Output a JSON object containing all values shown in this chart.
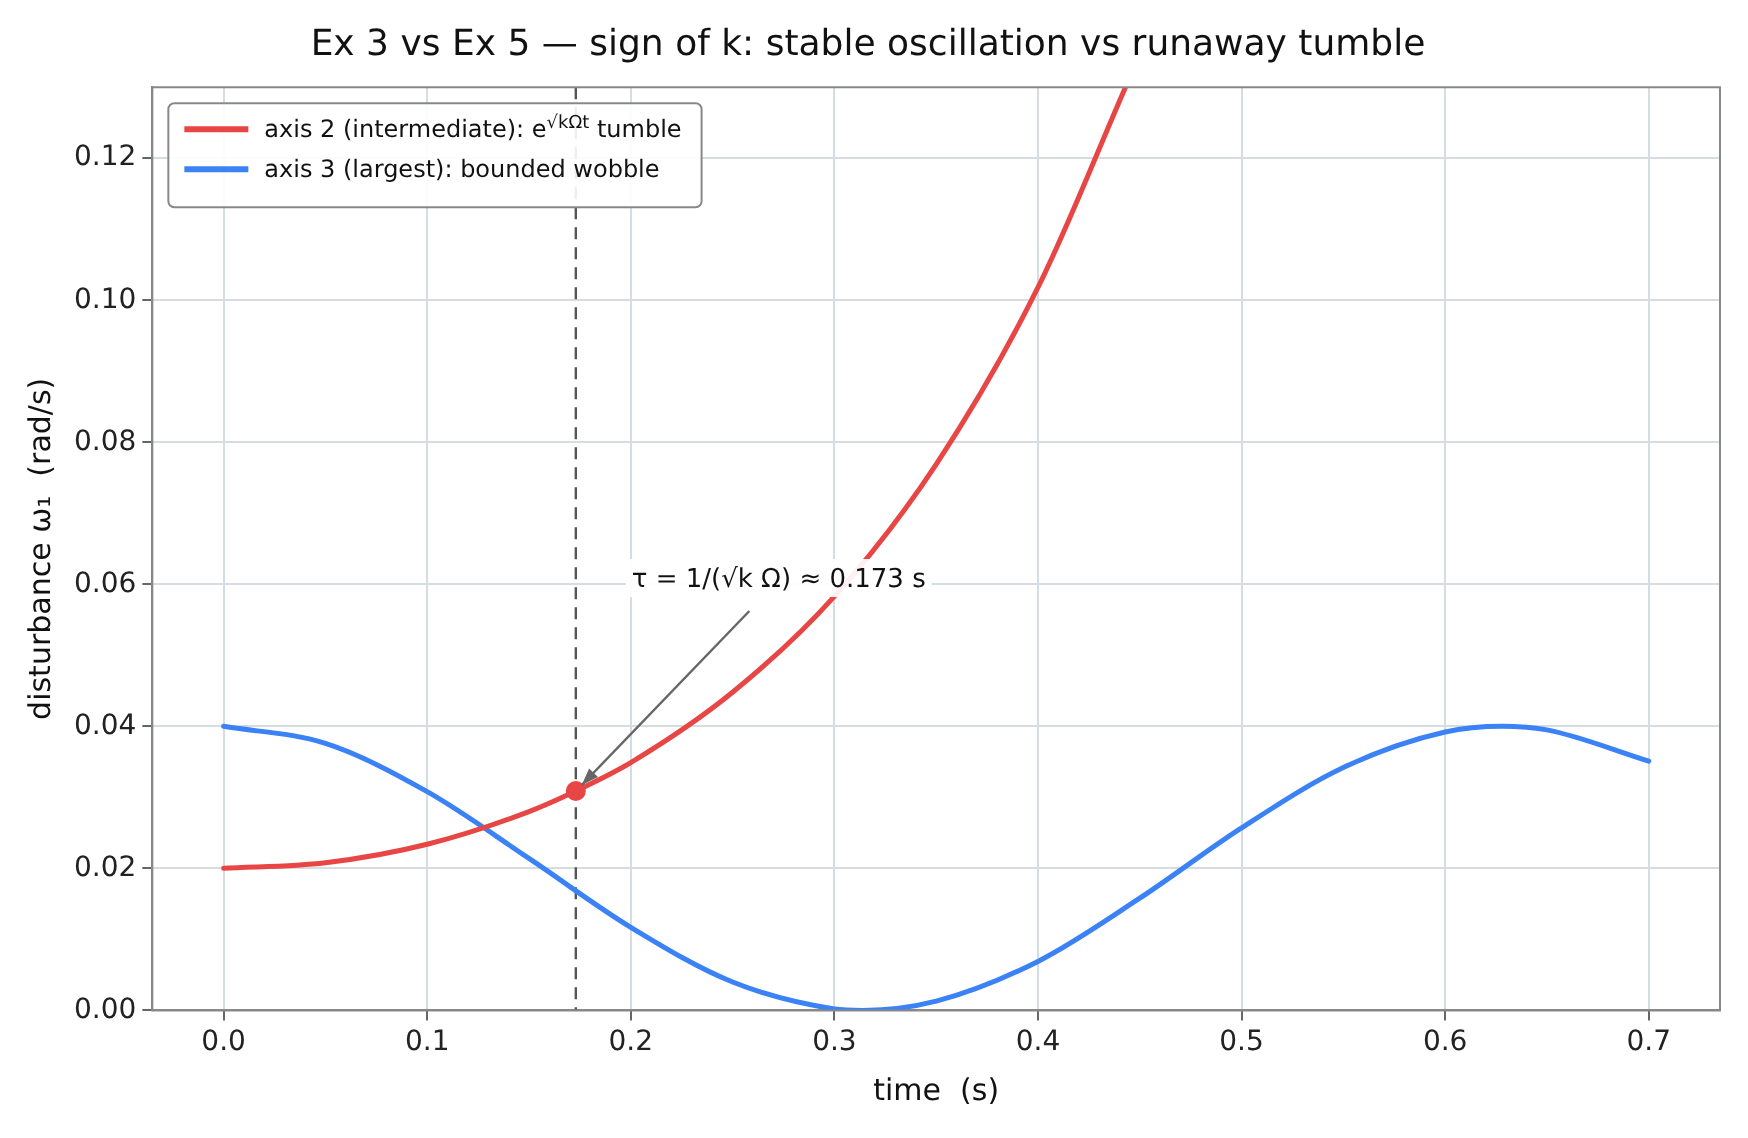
{
  "chart_data": {
    "type": "line",
    "title": "Ex 3 vs Ex 5 — sign of k: stable oscillation vs runaway tumble",
    "xlabel": "time  (s)",
    "ylabel": "disturbance ω₁  (rad/s)",
    "xlim": [
      -0.035,
      0.735
    ],
    "ylim": [
      0,
      0.13
    ],
    "xticks": [
      {
        "value": 0,
        "label": "0.0"
      },
      {
        "value": 0.1,
        "label": "0.1"
      },
      {
        "value": 0.2,
        "label": "0.2"
      },
      {
        "value": 0.3,
        "label": "0.3"
      },
      {
        "value": 0.4,
        "label": "0.4"
      },
      {
        "value": 0.5,
        "label": "0.5"
      },
      {
        "value": 0.6,
        "label": "0.6"
      },
      {
        "value": 0.7,
        "label": "0.7"
      }
    ],
    "yticks": [
      {
        "value": 0,
        "label": "0.00"
      },
      {
        "value": 0.02,
        "label": "0.02"
      },
      {
        "value": 0.04,
        "label": "0.04"
      },
      {
        "value": 0.06,
        "label": "0.06"
      },
      {
        "value": 0.08,
        "label": "0.08"
      },
      {
        "value": 0.1,
        "label": "0.10"
      },
      {
        "value": 0.12,
        "label": "0.12"
      }
    ],
    "grid": true,
    "legend": "top left",
    "line_style": "solid",
    "series": [
      {
        "name": "axis 2 (intermediate): e$^{√kΩt}$ tumble",
        "color": "#e84545",
        "x": [
          0,
          0.05,
          0.1,
          0.15,
          0.173,
          0.2,
          0.25,
          0.3,
          0.35,
          0.4,
          0.443
        ],
        "values": [
          0.02,
          0.0208,
          0.0234,
          0.028,
          0.0309,
          0.0349,
          0.0448,
          0.0583,
          0.0769,
          0.1018,
          0.13
        ]
      },
      {
        "name": "axis 3 (largest): bounded wobble",
        "color": "#3b82f6",
        "x": [
          0,
          0.05,
          0.1,
          0.15,
          0.2,
          0.25,
          0.3,
          0.314,
          0.35,
          0.4,
          0.45,
          0.5,
          0.55,
          0.6,
          0.628,
          0.65,
          0.7
        ],
        "values": [
          0.04,
          0.0376,
          0.0308,
          0.0214,
          0.0117,
          0.004,
          0.0002,
          0,
          0.0013,
          0.0069,
          0.0158,
          0.0257,
          0.0342,
          0.0392,
          0.04,
          0.0395,
          0.0351
        ]
      },
      {
        "type": "scatter",
        "marker": "circle",
        "color": "#e84545",
        "x": [
          0.173
        ],
        "values": [
          0.0309
        ]
      }
    ],
    "ref_lines": [
      {
        "axis": "x",
        "value": 0.173,
        "color": "#555555",
        "line_style": "dashed"
      }
    ],
    "annotations": [
      {
        "text": "τ = 1/(√k Ω) ≈ 0.173 s",
        "x": 0.173,
        "y": 0.0309
      }
    ]
  }
}
